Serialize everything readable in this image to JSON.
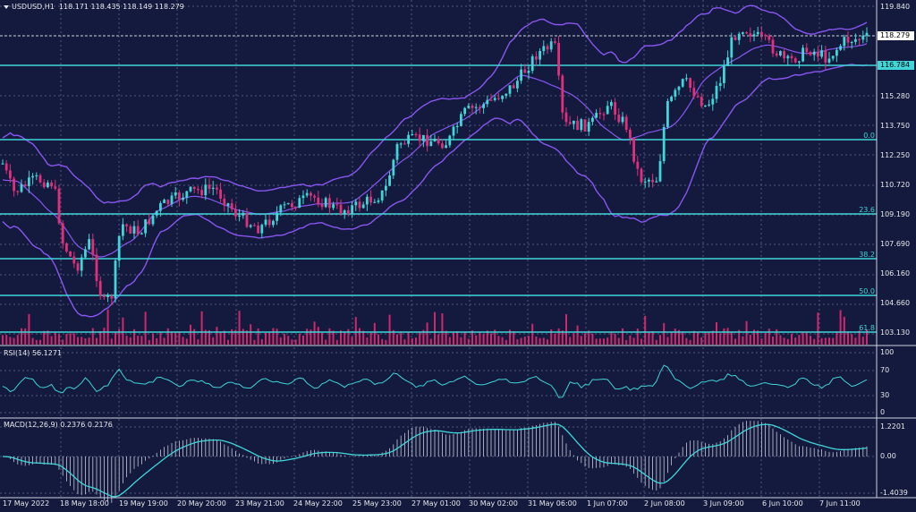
{
  "header": {
    "main": "USDUSD,H1  118.171 118.435 118.149 118.279",
    "rsi": "RSI(14) 56.1271",
    "macd": "MACD(12,26,9) 0.2376 0.2176"
  },
  "price_axis": [
    "119.840",
    "116.784",
    "115.280",
    "113.750",
    "112.250",
    "110.720",
    "109.190",
    "107.690",
    "106.160",
    "104.660",
    "103.130"
  ],
  "price_tag": "118.279",
  "level_tag": "116.784",
  "fib_labels": [
    "0.0",
    "23.6",
    "38.2",
    "50.0",
    "61.8"
  ],
  "rsi_axis": [
    "100",
    "70",
    "30",
    "0"
  ],
  "macd_axis": [
    "1.2201",
    "0.00",
    "-1.4039"
  ],
  "time_axis": [
    "17 May 2022",
    "18 May 18:00",
    "19 May 19:00",
    "20 May 20:00",
    "23 May 21:00",
    "24 May 22:00",
    "25 May 23:00",
    "27 May 01:00",
    "30 May 02:00",
    "31 May 06:00",
    "1 Jun 07:00",
    "2 Jun 08:00",
    "3 Jun 09:00",
    "6 Jun 10:00",
    "7 Jun 11:00"
  ],
  "colors": {
    "background": "#131a3e",
    "grid": "#4f5a7a",
    "up_candle": "#40d5d8",
    "down_candle": "#e0307a",
    "bands": "#8a55f0",
    "levels": "#40d5d8",
    "volume": "#d02868"
  }
}
